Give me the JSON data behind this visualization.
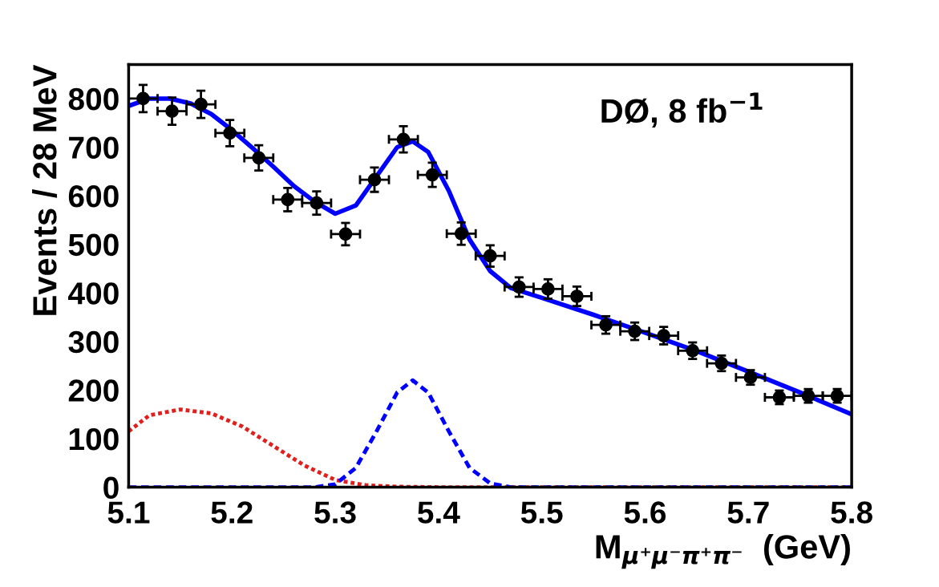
{
  "chart_data": {
    "type": "scatter",
    "xlabel": "M$_{μ⁺μ⁻π⁺π⁻}$  (GeV)",
    "ylabel": "Events / 28 MeV",
    "annotations": [
      "DØ, 8 fb$^{−1}$"
    ],
    "xlim": [
      5.1,
      5.8
    ],
    "xticks": [
      5.1,
      5.2,
      5.3,
      5.4,
      5.5,
      5.6,
      5.7,
      5.8
    ],
    "ylim": [
      0,
      870
    ],
    "yticks": [
      0,
      100,
      200,
      300,
      400,
      500,
      600,
      700,
      800
    ],
    "grid": false,
    "legend": false,
    "series": [
      {
        "color": "#000000",
        "marker": "circle",
        "x": [
          5.114,
          5.142,
          5.17,
          5.198,
          5.226,
          5.254,
          5.282,
          5.31,
          5.338,
          5.366,
          5.394,
          5.422,
          5.45,
          5.478,
          5.506,
          5.534,
          5.562,
          5.59,
          5.618,
          5.646,
          5.674,
          5.702,
          5.73,
          5.758,
          5.786
        ],
        "values": [
          800,
          774,
          788,
          729,
          678,
          592,
          585,
          521,
          633,
          716,
          643,
          522,
          476,
          412,
          408,
          393,
          334,
          321,
          312,
          281,
          255,
          226,
          185,
          188,
          188
        ],
        "errors": [
          28,
          28,
          28,
          27,
          26,
          24,
          24,
          23,
          25,
          27,
          25,
          23,
          22,
          20,
          20,
          20,
          18,
          18,
          18,
          17,
          16,
          15,
          14,
          14,
          14
        ],
        "xerrors": [
          0.014,
          0.014,
          0.014,
          0.014,
          0.014,
          0.014,
          0.014,
          0.014,
          0.014,
          0.014,
          0.014,
          0.014,
          0.014,
          0.014,
          0.014,
          0.014,
          0.014,
          0.014,
          0.014,
          0.014,
          0.014,
          0.014,
          0.014,
          0.014,
          0.014
        ]
      },
      {
        "type": "line",
        "color": "#0000ff",
        "line_style": "solid",
        "x": [
          5.1,
          5.12,
          5.14,
          5.16,
          5.18,
          5.2,
          5.22,
          5.24,
          5.26,
          5.28,
          5.3,
          5.32,
          5.34,
          5.36,
          5.375,
          5.39,
          5.41,
          5.43,
          5.45,
          5.47,
          5.5,
          5.55,
          5.6,
          5.65,
          5.7,
          5.75,
          5.8
        ],
        "values": [
          785,
          800,
          800,
          790,
          768,
          735,
          698,
          660,
          620,
          588,
          563,
          580,
          640,
          700,
          712,
          690,
          610,
          510,
          445,
          410,
          390,
          355,
          318,
          280,
          238,
          195,
          150
        ]
      },
      {
        "type": "line",
        "color": "#e0201c",
        "line_style": "dotted",
        "x": [
          5.1,
          5.12,
          5.15,
          5.18,
          5.21,
          5.24,
          5.27,
          5.3,
          5.33,
          5.36,
          5.4,
          5.8
        ],
        "values": [
          115,
          148,
          160,
          152,
          125,
          85,
          45,
          15,
          4,
          1,
          0,
          0
        ]
      },
      {
        "type": "line",
        "color": "#0000ff",
        "line_style": "dashed",
        "x": [
          5.1,
          5.28,
          5.3,
          5.32,
          5.34,
          5.36,
          5.375,
          5.39,
          5.41,
          5.43,
          5.45,
          5.47,
          5.8
        ],
        "values": [
          0,
          0,
          6,
          40,
          115,
          195,
          220,
          195,
          115,
          40,
          8,
          0,
          0
        ]
      }
    ]
  }
}
